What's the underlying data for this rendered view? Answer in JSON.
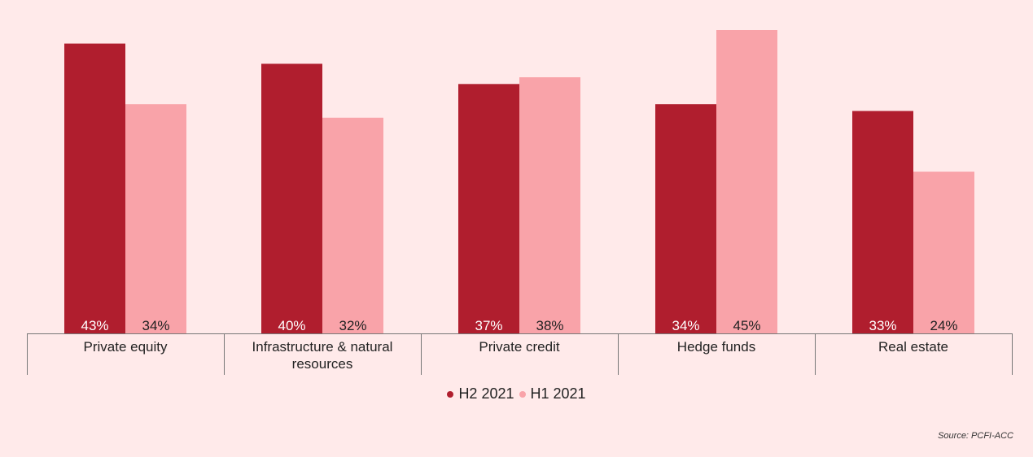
{
  "chart_data": {
    "type": "bar",
    "categories": [
      "Private equity",
      "Infrastructure & natural resources",
      "Private credit",
      "Hedge funds",
      "Real estate"
    ],
    "category_lines": [
      [
        "Private equity"
      ],
      [
        "Infrastructure & natural",
        "resources"
      ],
      [
        "Private credit"
      ],
      [
        "Hedge funds"
      ],
      [
        "Real estate"
      ]
    ],
    "series": [
      {
        "name": "H2 2021",
        "values": [
          43,
          40,
          37,
          34,
          33
        ],
        "labels": [
          "43%",
          "40%",
          "37%",
          "34%",
          "33%"
        ],
        "color": "#b01e2e"
      },
      {
        "name": "H1 2021",
        "values": [
          34,
          32,
          38,
          45,
          24
        ],
        "labels": [
          "34%",
          "32%",
          "38%",
          "45%",
          "24%"
        ],
        "color": "#f9a3a9"
      }
    ],
    "ylim": [
      0,
      45
    ],
    "grid": false,
    "legend_position": "bottom",
    "title": "",
    "xlabel": "",
    "ylabel": ""
  },
  "legend": {
    "h2_label": "H2 2021",
    "h1_label": "H1 2021"
  },
  "source": "Source: PCFI-ACC",
  "colors": {
    "background": "#ffeaea",
    "h2": "#b01e2e",
    "h1": "#f9a3a9",
    "axis": "#777777",
    "bar_label": "#ffffff",
    "text": "#222222"
  }
}
